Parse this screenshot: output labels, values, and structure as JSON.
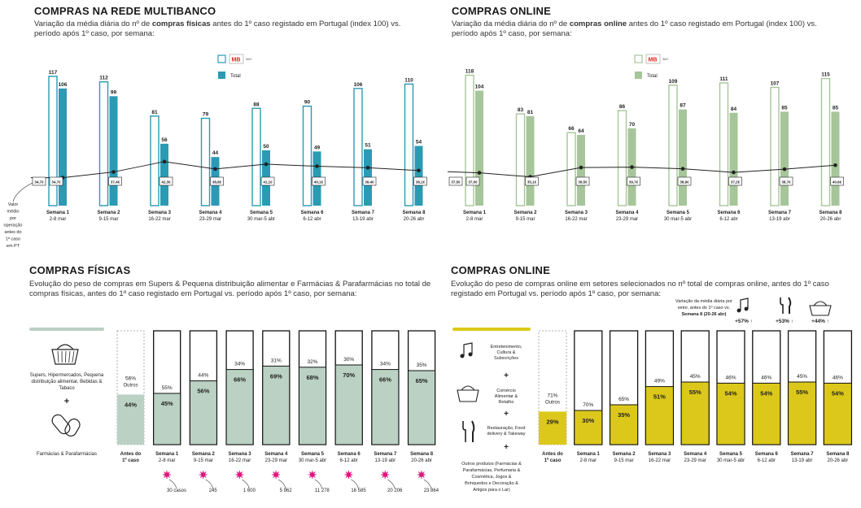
{
  "panels": {
    "tl": {
      "title": "COMPRAS NA REDE MULTIBANCO",
      "subtitle_parts": [
        "Variação da média diária do nº de ",
        "compras físicas",
        " antes do 1º caso registado em Portugal (index 100) vs. período após 1º caso, por semana:"
      ],
      "legend_logo": "MB",
      "legend_logo_sub": "WAY",
      "legend_total": "Total",
      "side_note": [
        "Valor",
        "médio",
        "por",
        "operação",
        "antes do",
        "1º caso",
        "em PT"
      ]
    },
    "tr": {
      "title": "COMPRAS ONLINE",
      "subtitle_parts": [
        "Variação da média diária do nº de ",
        "compras online",
        " antes do 1º caso registado em Portugal (index 100) vs. período após 1º caso, por semana:"
      ],
      "legend_logo": "MB",
      "legend_logo_sub": "WAY",
      "legend_total": "Total"
    },
    "bl": {
      "title": "COMPRAS FÍSICAS",
      "subtitle": "Evolução do peso de compras em Supers & Pequena distribuição alimentar e Farmácias & Parafarmácias no total de compras físicas, antes do 1º caso registado em Portugal vs. período após 1º caso, por semana:",
      "cat1": "Supers, Hipermercados, Pequena distribuição alimentar, Bebidas & Tabaco",
      "plus": "+",
      "cat2": "Farmácias & Parafarmácias"
    },
    "br": {
      "title": "COMPRAS ONLINE",
      "subtitle": "Evolução do peso de compras online em setores selecionados no nº total de compras online, antes do 1º caso registado em Portugal vs. período após 1º caso, por semana:",
      "note": "Variação da média diária por setor, antes do 1º caso vs. Semana 8 (20-26 abr)",
      "note_bold_1": "antes do 1º caso",
      "note_bold_2": "Semana 8",
      "changes": [
        "+57% ↑",
        "+53% ↑",
        "+44% ↑"
      ],
      "cats": [
        "Entretenimento, Cultura & Subscrições",
        "Comércio Alimentar & Retalho",
        "Restauração, Food delivery & Takeway",
        "Outros produtos (Farmácias & Parafarmácias, Perfumaria & Cosmética, Jogos & Brinquedos e Decoração & Artigos para o Lar)"
      ]
    }
  },
  "chart_data": [
    {
      "type": "bar",
      "id": "multibanco",
      "categories": [
        "Semana 1",
        "Semana 2",
        "Semana 3",
        "Semana 4",
        "Semana 5",
        "Semana 6",
        "Semana 7",
        "Semana 8"
      ],
      "dates": [
        "2-8 mar",
        "9-15 mar",
        "16-22 mar",
        "23-29 mar",
        "30 mar-5 abr",
        "6-12 abr",
        "13-19 abr",
        "20-26 abr"
      ],
      "series": [
        {
          "name": "MB WAY",
          "values": [
            117,
            112,
            81,
            79,
            88,
            90,
            106,
            110
          ]
        },
        {
          "name": "Total",
          "values": [
            106,
            99,
            56,
            44,
            50,
            49,
            51,
            54
          ]
        }
      ],
      "line_labels": [
        "34,7€",
        "34,7€",
        "37,4€",
        "42,3€",
        "38,8€",
        "41,1€",
        "40,1€",
        "39,4€",
        "38,1€"
      ],
      "line_values": [
        34.7,
        34.7,
        37.4,
        42.3,
        38.8,
        41.1,
        40.1,
        39.4,
        38.1
      ]
    },
    {
      "type": "bar",
      "id": "online",
      "categories": [
        "Semana 1",
        "Semana 2",
        "Semana 3",
        "Semana 4",
        "Semana 5",
        "Semana 6",
        "Semana 7",
        "Semana 8"
      ],
      "dates": [
        "2-8 mar",
        "9-15 mar",
        "16-22 mar",
        "23-29 mar",
        "30 mar-5 abr",
        "6-12 abr",
        "13-19 abr",
        "20-26 abr"
      ],
      "series": [
        {
          "name": "MB WAY",
          "values": [
            118,
            83,
            66,
            86,
            109,
            111,
            107,
            115
          ]
        },
        {
          "name": "Total",
          "values": [
            104,
            81,
            64,
            70,
            87,
            84,
            85,
            85
          ]
        }
      ],
      "line_labels": [
        "37,5€",
        "37,0€",
        "35,1€",
        "39,5€",
        "39,7€",
        "38,9€",
        "37,2€",
        "38,7€",
        "40,6€"
      ],
      "line_values": [
        37.5,
        37.0,
        35.1,
        39.5,
        39.7,
        38.9,
        37.2,
        38.7,
        40.6
      ]
    },
    {
      "type": "bar",
      "id": "fisicas_share",
      "categories": [
        "Antes do 1º caso",
        "Semana 1",
        "Semana 2",
        "Semana 3",
        "Semana 4",
        "Semana 5",
        "Semana 6",
        "Semana 7",
        "Semana 8"
      ],
      "dates": [
        "",
        "2-8 mar",
        "9-15 mar",
        "16-22 mar",
        "23-29 mar",
        "30 mar-5 abr",
        "6-12 abr",
        "13-19 abr",
        "20-26 abr"
      ],
      "share": [
        44,
        45,
        56,
        66,
        69,
        68,
        70,
        66,
        65
      ],
      "rest": [
        56,
        55,
        44,
        34,
        31,
        32,
        30,
        34,
        35
      ],
      "rest_label": "Outros",
      "cases": [
        "30 casos",
        "245",
        "1 600",
        "5 962",
        "11 278",
        "16 585",
        "20 206",
        "23 864"
      ]
    },
    {
      "type": "bar",
      "id": "online_share",
      "categories": [
        "Antes do 1º caso",
        "Semana 1",
        "Semana 2",
        "Semana 3",
        "Semana 4",
        "Semana 5",
        "Semana 6",
        "Semana 7",
        "Semana 8"
      ],
      "dates": [
        "",
        "2-8 mar",
        "9-15 mar",
        "16-22 mar",
        "23-29 mar",
        "30 mar-5 abr",
        "6-12 abr",
        "13-19 abr",
        "20-26 abr"
      ],
      "share": [
        29,
        30,
        35,
        51,
        55,
        54,
        54,
        55,
        54
      ],
      "rest": [
        71,
        70,
        65,
        49,
        45,
        46,
        46,
        45,
        46
      ],
      "rest_label": "Outros"
    }
  ],
  "colors": {
    "teal": "#2a9bb3",
    "green": "#a7c59a",
    "sage": "#bad1c3",
    "yellow": "#dcc81a",
    "magenta": "#e0177e",
    "mb_red": "#d9251d"
  }
}
